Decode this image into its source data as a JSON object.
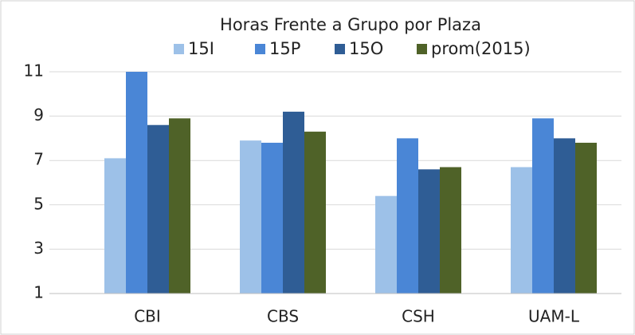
{
  "chart_data": {
    "type": "bar",
    "title": "Horas Frente a Grupo por Plaza",
    "categories": [
      "CBI",
      "CBS",
      "CSH",
      "UAM-L"
    ],
    "series": [
      {
        "name": "15I",
        "color": "#9dc1e8",
        "values": [
          7.1,
          7.9,
          5.4,
          6.7
        ]
      },
      {
        "name": "15P",
        "color": "#4a86d6",
        "values": [
          11.0,
          7.8,
          8.0,
          8.9
        ]
      },
      {
        "name": "15O",
        "color": "#2f5d95",
        "values": [
          8.6,
          9.2,
          6.6,
          8.0
        ]
      },
      {
        "name": "prom(2015)",
        "color": "#4f6228",
        "values": [
          8.9,
          8.3,
          6.7,
          7.8
        ]
      }
    ],
    "ylim": [
      1,
      11
    ],
    "yticks": [
      1,
      3,
      5,
      7,
      9,
      11
    ],
    "grid": true,
    "legend": "top"
  }
}
